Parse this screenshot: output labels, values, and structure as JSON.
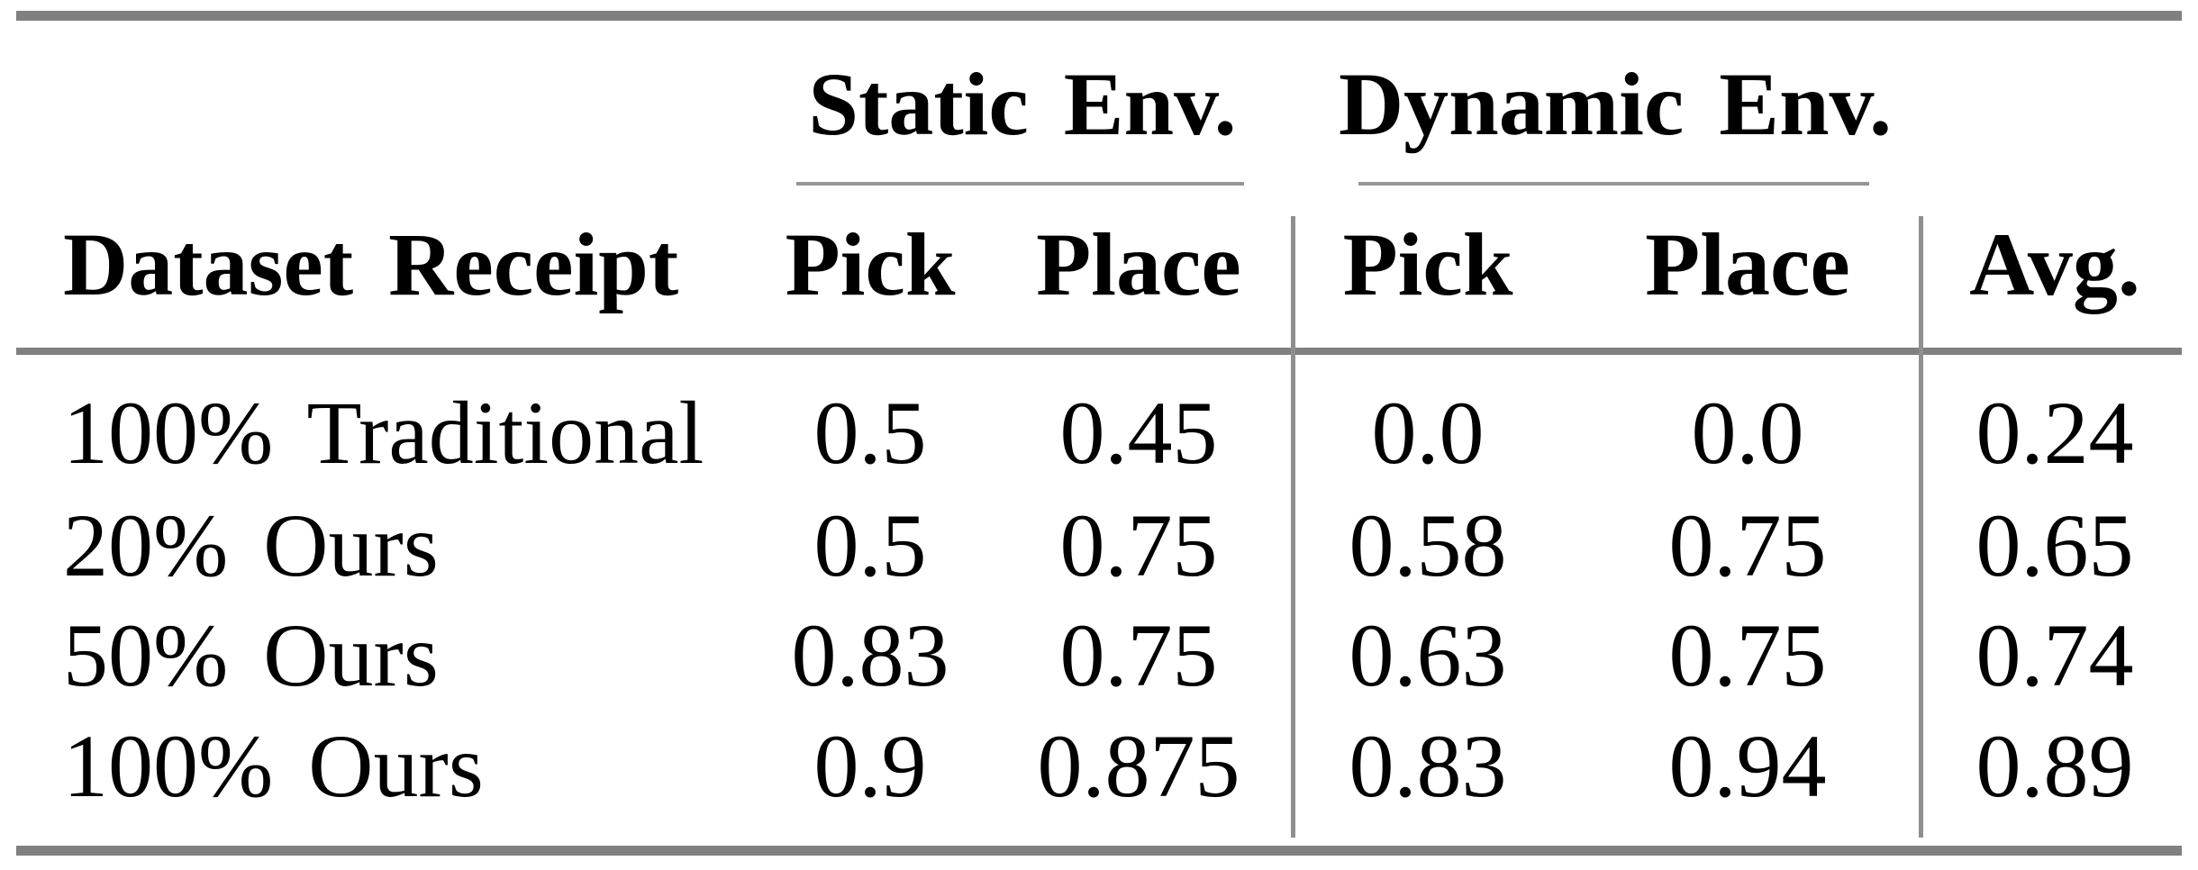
{
  "page": {
    "background": "#ffffff",
    "rule_color": "#808080",
    "divider_color": "#8f8f8f",
    "text_color": "#000000"
  },
  "table": {
    "group_headers": [
      "Static Env.",
      "Dynamic Env."
    ],
    "col_headers": [
      "Dataset Receipt",
      "Pick",
      "Place",
      "Pick",
      "Place",
      "Avg."
    ],
    "rows": [
      {
        "label": "100% Traditional",
        "values": [
          "0.5",
          "0.45",
          "0.0",
          "0.0",
          "0.24"
        ]
      },
      {
        "label": "20% Ours",
        "values": [
          "0.5",
          "0.75",
          "0.58",
          "0.75",
          "0.65"
        ]
      },
      {
        "label": "50% Ours",
        "values": [
          "0.83",
          "0.75",
          "0.63",
          "0.75",
          "0.74"
        ]
      },
      {
        "label": "100% Ours",
        "values": [
          "0.9",
          "0.875",
          "0.83",
          "0.94",
          "0.89"
        ]
      }
    ]
  },
  "chart_data": {
    "type": "table",
    "columns": [
      "Dataset Receipt",
      "Static Env. Pick",
      "Static Env. Place",
      "Dynamic Env. Pick",
      "Dynamic Env. Place",
      "Avg."
    ],
    "rows": [
      [
        "100% Traditional",
        0.5,
        0.45,
        0.0,
        0.0,
        0.24
      ],
      [
        "20% Ours",
        0.5,
        0.75,
        0.58,
        0.75,
        0.65
      ],
      [
        "50% Ours",
        0.83,
        0.75,
        0.63,
        0.75,
        0.74
      ],
      [
        "100% Ours",
        0.9,
        0.875,
        0.83,
        0.94,
        0.89
      ]
    ]
  }
}
